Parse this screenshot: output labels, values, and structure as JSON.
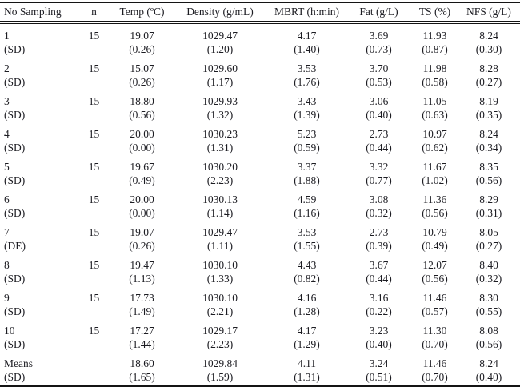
{
  "page": {
    "background": "#ffffff",
    "text_color": "#1c1c22",
    "rule_color": "#141414"
  },
  "table": {
    "columns": [
      "No Sampling",
      "n",
      "Temp (ºC)",
      "Density (g/mL)",
      "MBRT (h:min)",
      "Fat (g/L)",
      "TS (%)",
      "NFS (g/L)"
    ],
    "groups": [
      {
        "label": "1",
        "sd_label": "(SD)",
        "n": "15",
        "values": [
          "19.07",
          "1029.47",
          "4.17",
          "3.69",
          "11.93",
          "8.24"
        ],
        "sd": [
          "(0.26)",
          "(1.20)",
          "(1.40)",
          "(0.73)",
          "(0.87)",
          "(0.30)"
        ]
      },
      {
        "label": "2",
        "sd_label": "(SD)",
        "n": "15",
        "values": [
          "15.07",
          "1029.60",
          "3.53",
          "3.70",
          "11.98",
          "8.28"
        ],
        "sd": [
          "(0.26)",
          "(1.17)",
          "(1.76)",
          "(0.53)",
          "(0.58)",
          "(0.27)"
        ]
      },
      {
        "label": "3",
        "sd_label": "(SD)",
        "n": "15",
        "values": [
          "18.80",
          "1029.93",
          "3.43",
          "3.06",
          "11.05",
          "8.19"
        ],
        "sd": [
          "(0.56)",
          "(1.32)",
          "(1.39)",
          "(0.40)",
          "(0.63)",
          "(0.35)"
        ]
      },
      {
        "label": "4",
        "sd_label": "(SD)",
        "n": "15",
        "values": [
          "20.00",
          "1030.23",
          "5.23",
          "2.73",
          "10.97",
          "8.24"
        ],
        "sd": [
          "(0.00)",
          "(1.31)",
          "(0.59)",
          "(0.44)",
          "(0.62)",
          "(0.34)"
        ]
      },
      {
        "label": "5",
        "sd_label": "(SD)",
        "n": "15",
        "values": [
          "19.67",
          "1030.20",
          "3.37",
          "3.32",
          "11.67",
          "8.35"
        ],
        "sd": [
          "(0.49)",
          "(2.23)",
          "(1.88)",
          "(0.77)",
          "(1.02)",
          "(0.56)"
        ]
      },
      {
        "label": "6",
        "sd_label": "(SD)",
        "n": "15",
        "values": [
          "20.00",
          "1030.13",
          "4.59",
          "3.08",
          "11.36",
          "8.29"
        ],
        "sd": [
          "(0.00)",
          "(1.14)",
          "(1.16)",
          "(0.32)",
          "(0.56)",
          "(0.31)"
        ]
      },
      {
        "label": "7",
        "sd_label": "(DE)",
        "n": "15",
        "values": [
          "19.07",
          "1029.47",
          "3.53",
          "2.73",
          "10.79",
          "8.05"
        ],
        "sd": [
          "(0.26)",
          "(1.11)",
          "(1.55)",
          "(0.39)",
          "(0.49)",
          "(0.27)"
        ]
      },
      {
        "label": "8",
        "sd_label": "(SD)",
        "n": "15",
        "values": [
          "19.47",
          "1030.10",
          "4.43",
          "3.67",
          "12.07",
          "8.40"
        ],
        "sd": [
          "(1.13)",
          "(1.33)",
          "(0.82)",
          "(0.44)",
          "(0.56)",
          "(0.32)"
        ]
      },
      {
        "label": "9",
        "sd_label": "(SD)",
        "n": "15",
        "values": [
          "17.73",
          "1030.10",
          "4.16",
          "3.16",
          "11.46",
          "8.30"
        ],
        "sd": [
          "(1.49)",
          "(2.21)",
          "(1.28)",
          "(0.22)",
          "(0.57)",
          "(0.55)"
        ]
      },
      {
        "label": "10",
        "sd_label": "(SD)",
        "n": "15",
        "values": [
          "17.27",
          "1029.17",
          "4.17",
          "3.23",
          "11.30",
          "8.08"
        ],
        "sd": [
          "(1.44)",
          "(2.23)",
          "(1.29)",
          "(0.40)",
          "(0.70)",
          "(0.56)"
        ]
      },
      {
        "label": "Means",
        "sd_label": "(SD)",
        "n": "",
        "values": [
          "18.60",
          "1029.84",
          "4.11",
          "3.24",
          "11.46",
          "8.24"
        ],
        "sd": [
          "(1.65)",
          "(1.59)",
          "(1.31)",
          "(0.51)",
          "(0.70)",
          "(0.40)"
        ]
      }
    ]
  }
}
